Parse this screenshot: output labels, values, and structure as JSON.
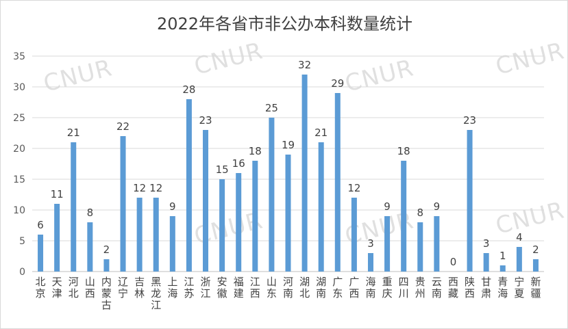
{
  "watermark": "CNUR",
  "chart_data": {
    "type": "bar",
    "title": "2022年各省市非公办本科数量统计",
    "xlabel": "",
    "ylabel": "",
    "ylim": [
      0,
      35
    ],
    "yticks": [
      0,
      5,
      10,
      15,
      20,
      25,
      30,
      35
    ],
    "grid": true,
    "bar_color": "#5b9bd5",
    "categories": [
      "北京",
      "天津",
      "河北",
      "山西",
      "内蒙古",
      "辽宁",
      "吉林",
      "黑龙江",
      "上海",
      "江苏",
      "浙江",
      "安徽",
      "福建",
      "江西",
      "山东",
      "河南",
      "湖北",
      "湖南",
      "广东",
      "广西",
      "海南",
      "重庆",
      "四川",
      "贵州",
      "云南",
      "西藏",
      "陕西",
      "甘肃",
      "青海",
      "宁夏",
      "新疆"
    ],
    "values": [
      6,
      11,
      21,
      8,
      2,
      22,
      12,
      12,
      9,
      28,
      23,
      15,
      16,
      18,
      25,
      19,
      32,
      21,
      29,
      12,
      3,
      9,
      18,
      8,
      9,
      0,
      23,
      3,
      1,
      4,
      2
    ]
  }
}
